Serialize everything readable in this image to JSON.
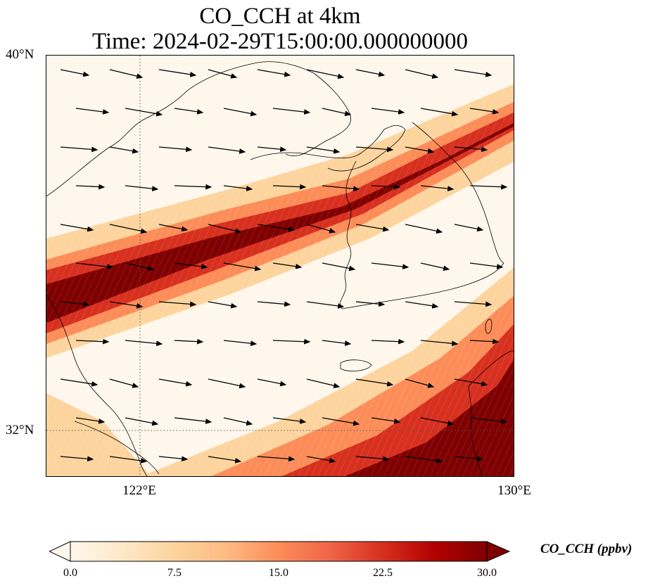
{
  "title": {
    "line1": "CO_CCH at 4km",
    "line2": "Time: 2024-02-29T15:00:00.000000000"
  },
  "axes": {
    "lat_ticks": [
      "40°N",
      "32°N"
    ],
    "lon_ticks": [
      "122°E",
      "130°E"
    ],
    "lat_range": [
      31,
      40
    ],
    "lon_range": [
      120,
      130
    ]
  },
  "colorbar": {
    "label": "CO_CCH (ppbv)",
    "ticks": [
      "0.0",
      "7.5",
      "15.0",
      "22.5",
      "30.0"
    ],
    "min": 0,
    "max": 30,
    "extend": "both",
    "colormap": "OrRd",
    "stops": [
      "#fff7ec",
      "#fee8c8",
      "#fdd49e",
      "#fdbb84",
      "#fc8d59",
      "#ef6548",
      "#d7301f",
      "#b30000",
      "#7f0000"
    ]
  },
  "gridlines": {
    "style": "dotted",
    "color": "#555555"
  }
}
